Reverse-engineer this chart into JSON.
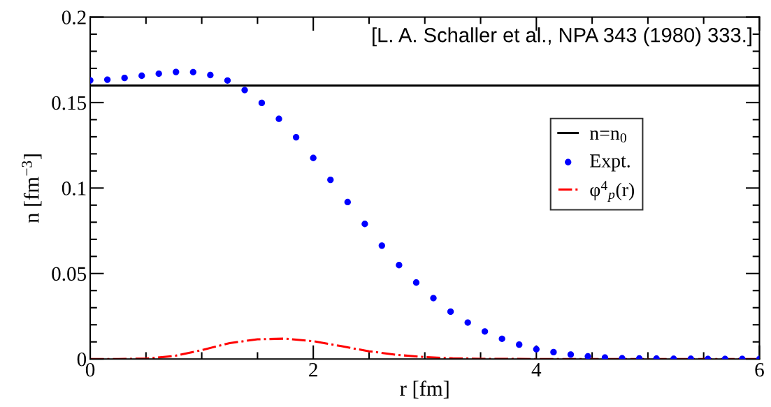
{
  "chart_data": {
    "type": "scatter",
    "xlabel": "r [fm]",
    "ylabel": "n [fm$^{−3}$]",
    "annotations": [
      "[L. A. Schaller et al., NPA 343 (1980) 333.]"
    ],
    "xlim": [
      0,
      6
    ],
    "ylim": [
      0,
      0.2
    ],
    "xticks": [
      0,
      {
        "value": 0.5,
        "label": null
      },
      {
        "value": 1,
        "label": null
      },
      {
        "value": 1.5,
        "label": null
      },
      2,
      {
        "value": 2.5,
        "label": null
      },
      {
        "value": 3,
        "label": null
      },
      {
        "value": 3.5,
        "label": null
      },
      4,
      {
        "value": 4.5,
        "label": null
      },
      {
        "value": 5,
        "label": null
      },
      {
        "value": 5.5,
        "label": null
      },
      6
    ],
    "yticks": [
      0,
      {
        "value": 0.01,
        "label": null
      },
      {
        "value": 0.02,
        "label": null
      },
      {
        "value": 0.03,
        "label": null
      },
      {
        "value": 0.04,
        "label": null
      },
      0.05,
      {
        "value": 0.06,
        "label": null
      },
      {
        "value": 0.07,
        "label": null
      },
      {
        "value": 0.08,
        "label": null
      },
      {
        "value": 0.09,
        "label": null
      },
      0.1,
      {
        "value": 0.11,
        "label": null
      },
      {
        "value": 0.12,
        "label": null
      },
      {
        "value": 0.13,
        "label": null
      },
      {
        "value": 0.14,
        "label": null
      },
      0.15,
      {
        "value": 0.16,
        "label": null
      },
      {
        "value": 0.17,
        "label": null
      },
      {
        "value": 0.18,
        "label": null
      },
      {
        "value": 0.19,
        "label": null
      },
      0.2
    ],
    "grid": false,
    "legend": "right",
    "series": [
      {
        "name": "n=n$_{0}$",
        "type": "line",
        "color": "#000000",
        "line_style": "solid",
        "marker": "none",
        "x": [
          0,
          6
        ],
        "values": [
          0.16,
          0.16
        ]
      },
      {
        "name": "Expt.",
        "color": "#0000ff",
        "marker": "circle",
        "x": [
          0,
          0.154,
          0.308,
          0.462,
          0.615,
          0.769,
          0.923,
          1.077,
          1.231,
          1.385,
          1.538,
          1.692,
          1.846,
          2.0,
          2.154,
          2.308,
          2.462,
          2.615,
          2.769,
          2.923,
          3.077,
          3.231,
          3.385,
          3.538,
          3.692,
          3.846,
          4.0,
          4.154,
          4.308,
          4.462,
          4.615,
          4.769,
          4.923,
          5.077,
          5.231,
          5.385,
          5.538,
          5.692,
          5.846,
          6.0
        ],
        "values": [
          0.163,
          0.1634,
          0.1644,
          0.1657,
          0.1669,
          0.1679,
          0.1678,
          0.1661,
          0.1629,
          0.1573,
          0.1498,
          0.1405,
          0.1297,
          0.1176,
          0.1048,
          0.0918,
          0.079,
          0.0663,
          0.0549,
          0.0447,
          0.0356,
          0.0277,
          0.0213,
          0.0161,
          0.0118,
          0.0084,
          0.0057,
          0.004,
          0.0026,
          0.0015,
          0.0008,
          0.0004,
          0.0003,
          0.0002,
          0.0001,
          0.0001,
          0,
          0,
          0,
          0
        ]
      },
      {
        "name": "φ$^{4}$$_{p}$(r)",
        "type": "line",
        "color": "#ff0000",
        "line_style": "dashdot",
        "marker": "none",
        "x": [
          0,
          0.25,
          0.5,
          0.75,
          1.0,
          1.25,
          1.5,
          1.75,
          2.0,
          2.25,
          2.5,
          2.75,
          3.0,
          3.25,
          3.5,
          4.0,
          5.0,
          6.0
        ],
        "values": [
          0,
          0,
          0.0002,
          0.0017,
          0.0052,
          0.0093,
          0.0115,
          0.0119,
          0.0104,
          0.0075,
          0.0045,
          0.0024,
          0.0011,
          0.0004,
          0.0001,
          0,
          0,
          0
        ]
      }
    ]
  }
}
